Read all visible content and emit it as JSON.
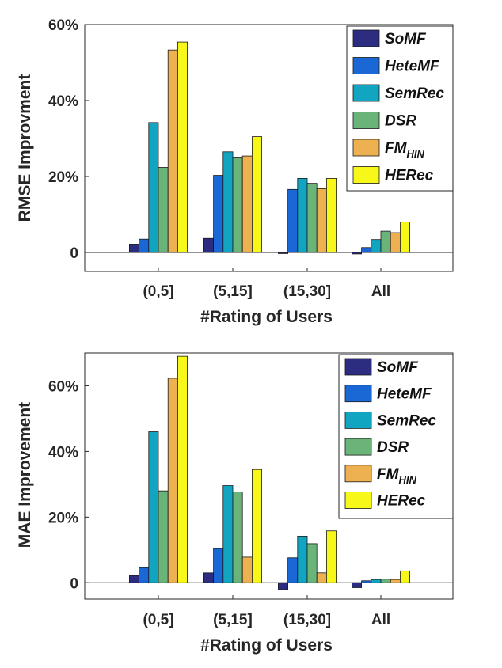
{
  "colors": {
    "SoMF": "#2c2d80",
    "HeteMF": "#1a68d6",
    "SemRec": "#12a5c2",
    "DSR": "#6ab47a",
    "FM": "#eeb152",
    "HERec": "#f7f71a"
  },
  "chart_data": [
    {
      "type": "bar",
      "ylabel": "RMSE Improvment",
      "xlabel": "#Rating of Users",
      "ylim": [
        -5,
        60
      ],
      "yticks": [
        0,
        20,
        40,
        60
      ],
      "ytick_labels": [
        "0",
        "20%",
        "40%",
        "60%"
      ],
      "categories": [
        "(0,5]",
        "(5,15]",
        "(15,30]",
        "All"
      ],
      "legend_position": "top-right",
      "legend": [
        {
          "name": "SoMF"
        },
        {
          "name": "HeteMF"
        },
        {
          "name": "SemRec"
        },
        {
          "name": "DSR"
        },
        {
          "name": "FM",
          "sub": "HIN"
        },
        {
          "name": "HERec"
        }
      ],
      "series": [
        {
          "name": "SoMF",
          "values": [
            2.2,
            3.7,
            -0.3,
            -0.4
          ]
        },
        {
          "name": "HeteMF",
          "values": [
            3.5,
            20.3,
            16.6,
            1.3
          ]
        },
        {
          "name": "SemRec",
          "values": [
            34.2,
            26.5,
            19.5,
            3.4
          ]
        },
        {
          "name": "DSR",
          "values": [
            22.4,
            25.1,
            18.2,
            5.6
          ]
        },
        {
          "name": "FM_HIN",
          "values": [
            53.3,
            25.4,
            16.8,
            5.2
          ]
        },
        {
          "name": "HERec",
          "values": [
            55.4,
            30.5,
            19.5,
            8.0
          ]
        }
      ]
    },
    {
      "type": "bar",
      "ylabel": "MAE Improvement",
      "xlabel": "#Rating of Users",
      "ylim": [
        -5,
        70
      ],
      "yticks": [
        0,
        20,
        40,
        60
      ],
      "ytick_labels": [
        "0",
        "20%",
        "40%",
        "60%"
      ],
      "categories": [
        "(0,5]",
        "(5,15]",
        "(15,30]",
        "All"
      ],
      "legend_position": "top-right",
      "legend": [
        {
          "name": "SoMF"
        },
        {
          "name": "HeteMF"
        },
        {
          "name": "SemRec"
        },
        {
          "name": "DSR"
        },
        {
          "name": "FM",
          "sub": "HIN"
        },
        {
          "name": "HERec"
        }
      ],
      "series": [
        {
          "name": "SoMF",
          "values": [
            2.2,
            3.0,
            -2.1,
            -1.5
          ]
        },
        {
          "name": "HeteMF",
          "values": [
            4.6,
            10.4,
            7.6,
            0.6
          ]
        },
        {
          "name": "SemRec",
          "values": [
            46.0,
            29.6,
            14.2,
            1.0
          ]
        },
        {
          "name": "DSR",
          "values": [
            28.0,
            27.7,
            11.9,
            1.1
          ]
        },
        {
          "name": "FM_HIN",
          "values": [
            62.3,
            7.8,
            3.0,
            1.0
          ]
        },
        {
          "name": "HERec",
          "values": [
            69.0,
            34.5,
            15.8,
            3.6
          ]
        }
      ]
    }
  ]
}
